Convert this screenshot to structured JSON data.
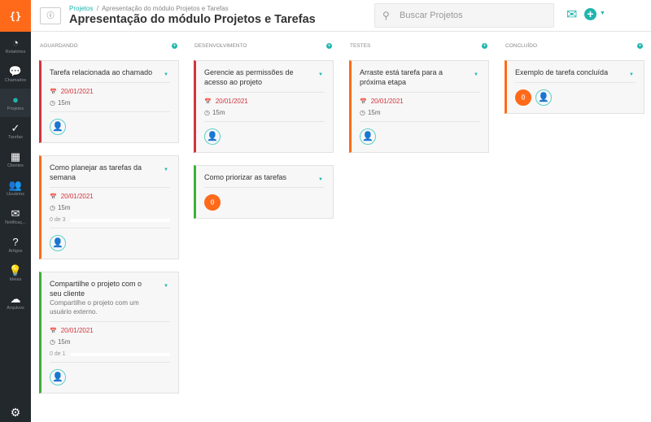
{
  "logo": "{}",
  "sidebar": {
    "items": [
      {
        "label": "Relatórios",
        "icon": "pie-chart-icon",
        "glyph": "◔"
      },
      {
        "label": "Chamados",
        "icon": "chat-icon",
        "glyph": "💬"
      },
      {
        "label": "Projetos",
        "icon": "clock-icon",
        "glyph": "●",
        "active": true
      },
      {
        "label": "Tarefas",
        "icon": "check-icon",
        "glyph": "✓"
      },
      {
        "label": "Clientes",
        "icon": "building-icon",
        "glyph": "▦"
      },
      {
        "label": "Usuários",
        "icon": "users-icon",
        "glyph": "👥"
      },
      {
        "label": "Notificaç...",
        "icon": "envelope-icon",
        "glyph": "✉"
      },
      {
        "label": "Artigos",
        "icon": "question-icon",
        "glyph": "?"
      },
      {
        "label": "Ideias",
        "icon": "lightbulb-icon",
        "glyph": "💡"
      },
      {
        "label": "Arquivos",
        "icon": "cloud-icon",
        "glyph": "☁"
      }
    ]
  },
  "header": {
    "breadcrumb_root": "Projetos",
    "breadcrumb_sep": "/",
    "breadcrumb_current": "Apresentação do módulo Projetos e Tarefas",
    "title": "Apresentação do módulo Projetos e Tarefas",
    "search_placeholder": "Buscar Projetos"
  },
  "colors": {
    "accent": "#1fb5ad",
    "brand": "#ff6a1a",
    "red": "#d0343c",
    "green": "#3cb034"
  },
  "columns": [
    {
      "name": "AGUARDANDO",
      "cards": [
        {
          "title": "Tarefa relacionada ao chamado",
          "color": "#d0343c",
          "date": "20/01/2021",
          "duration": "15m",
          "users": [
            "user"
          ]
        },
        {
          "title": "Como planejar as tarefas da semana",
          "color": "#ff6a1a",
          "date": "20/01/2021",
          "duration": "15m",
          "progress": "0 de 3",
          "users": [
            "user"
          ]
        },
        {
          "title": "Compartilhe o projeto com o seu cliente",
          "description": "Compartilhe o projeto com um usuário externo.",
          "color": "#3cb034",
          "date": "20/01/2021",
          "duration": "15m",
          "progress": "0 de 1",
          "users": [
            "user"
          ]
        }
      ]
    },
    {
      "name": "DESENVOLVIMENTO",
      "cards": [
        {
          "title": "Gerencie as permissões de acesso ao projeto",
          "color": "#d0343c",
          "date": "20/01/2021",
          "duration": "15m",
          "users": [
            "user"
          ]
        },
        {
          "title": "Como priorizar as tarefas",
          "color": "#3cb034",
          "users": [
            "org"
          ]
        }
      ]
    },
    {
      "name": "TESTES",
      "cards": [
        {
          "title": "Arraste está tarefa para a próxima etapa",
          "color": "#ff6a1a",
          "date": "20/01/2021",
          "duration": "15m",
          "users": [
            "user"
          ]
        }
      ]
    },
    {
      "name": "CONCLUÍDO",
      "cards": [
        {
          "title": "Exemplo de tarefa concluída",
          "color": "#ff6a1a",
          "users": [
            "org",
            "user"
          ]
        }
      ]
    }
  ]
}
